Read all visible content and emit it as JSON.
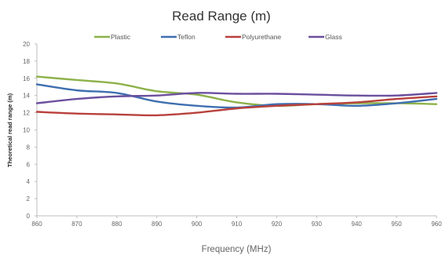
{
  "chart_data": {
    "type": "line",
    "title": "Read Range (m)",
    "xlabel": "Frequency (MHz)",
    "ylabel": "Theoretical read range (m)",
    "x": [
      860,
      870,
      880,
      890,
      900,
      910,
      920,
      930,
      940,
      950,
      960
    ],
    "x_tick_labels": [
      "860",
      "870",
      "880",
      "890",
      "900",
      "910",
      "920",
      "930",
      "940",
      "950",
      "960"
    ],
    "y_tick_labels": [
      "0",
      "2",
      "4",
      "6",
      "8",
      "10",
      "12",
      "14",
      "16",
      "18",
      "20"
    ],
    "xlim": [
      860,
      960
    ],
    "ylim": [
      0,
      20
    ],
    "grid": false,
    "legend_position": "top",
    "series": [
      {
        "name": "Plastic",
        "color": "#8db24a",
        "values": [
          16.2,
          15.8,
          15.4,
          14.5,
          14.1,
          13.2,
          12.8,
          13.0,
          13.1,
          13.1,
          13.0
        ]
      },
      {
        "name": "Teflon",
        "color": "#3f6fb0",
        "values": [
          15.3,
          14.6,
          14.3,
          13.3,
          12.8,
          12.6,
          13.0,
          13.0,
          12.8,
          13.1,
          13.6
        ]
      },
      {
        "name": "Polyurethane",
        "color": "#b8413c",
        "values": [
          12.1,
          11.9,
          11.8,
          11.7,
          12.0,
          12.5,
          12.8,
          13.0,
          13.2,
          13.6,
          13.9
        ]
      },
      {
        "name": "Glass",
        "color": "#6b4f9e",
        "values": [
          13.1,
          13.6,
          13.9,
          14.0,
          14.3,
          14.2,
          14.2,
          14.1,
          14.0,
          14.0,
          14.3
        ]
      }
    ]
  }
}
